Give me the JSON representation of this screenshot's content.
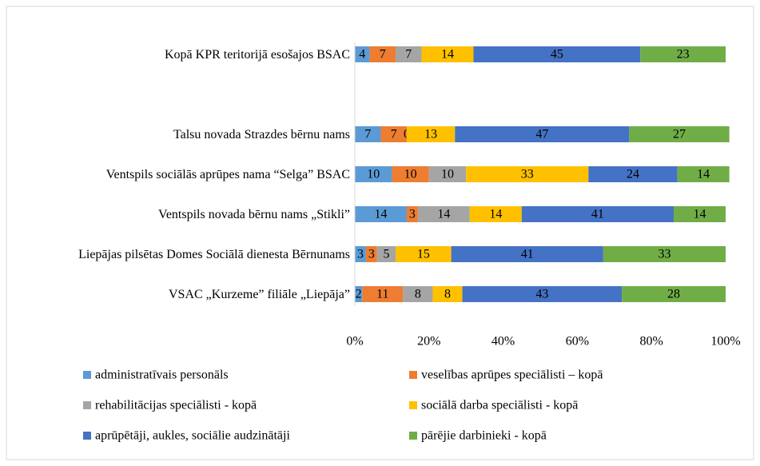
{
  "chart_data": {
    "type": "stacked_bar_horizontal",
    "categories": [
      "Kopā KPR teritorijā esošajos BSAC",
      null,
      "Talsu novada Strazdes bērnu nams",
      "Ventspils sociālās aprūpes nama “Selga” BSAC",
      "Ventspils novada bērnu nams „Stikli”",
      "Liepājas pilsētas Domes Sociālā dienesta Bērnunams",
      "VSAC „Kurzeme” filiāle „Liepāja”"
    ],
    "series": [
      {
        "name": "administratīvais personāls",
        "color": "#5b9bd5",
        "values": [
          4,
          null,
          7,
          10,
          14,
          3,
          2
        ]
      },
      {
        "name": "veselības aprūpes  speciālisti – kopā",
        "color": "#ed7d31",
        "values": [
          7,
          null,
          7,
          10,
          3,
          3,
          11
        ]
      },
      {
        "name": "rehabilitācijas speciālisti - kopā",
        "color": "#a5a5a5",
        "values": [
          7,
          null,
          0,
          10,
          14,
          5,
          8
        ]
      },
      {
        "name": "sociālā darba speciālisti - kopā",
        "color": "#ffc000",
        "values": [
          14,
          null,
          13,
          33,
          14,
          15,
          8
        ]
      },
      {
        "name": "aprūpētāji, aukles, sociālie audzinātāji",
        "color": "#4472c4",
        "values": [
          45,
          null,
          47,
          24,
          41,
          41,
          43
        ]
      },
      {
        "name": "pārējie darbinieki - kopā",
        "color": "#70ad47",
        "values": [
          23,
          null,
          27,
          14,
          14,
          33,
          28
        ]
      }
    ],
    "xlim": [
      0,
      100
    ],
    "xticks": [
      {
        "value": 0,
        "label": "0%"
      },
      {
        "value": 20,
        "label": "20%"
      },
      {
        "value": 40,
        "label": "40%"
      },
      {
        "value": 60,
        "label": "60%"
      },
      {
        "value": 80,
        "label": "80%"
      },
      {
        "value": 100,
        "label": "100%"
      }
    ],
    "legend": "bottom"
  }
}
